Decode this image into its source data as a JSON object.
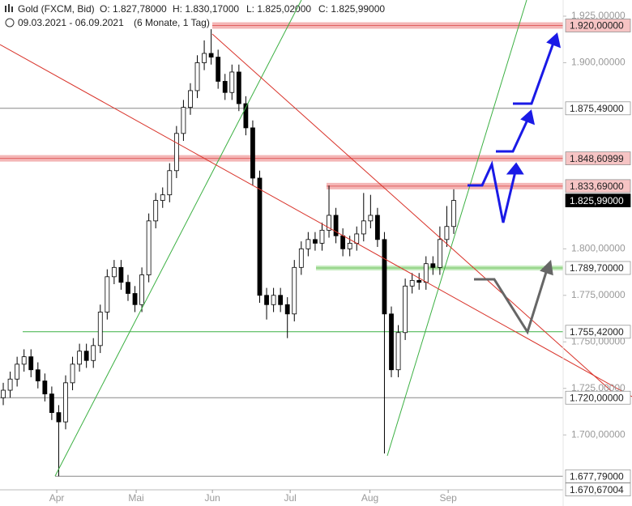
{
  "chart_data": {
    "type": "candlestick",
    "title": "Gold (FXCM, Bid)",
    "ohlc_header": [
      "O: 1.827,78000",
      "H: 1.830,17000",
      "L: 1.825,02000",
      "C: 1.825,99000"
    ],
    "subtitle": "09.03.2021 - 06.09.2021",
    "period": "(6 Monate, 1 Tag)",
    "color_up": "#ffffff",
    "color_down": "#000000",
    "xlim": [
      -0.47,
      80.2
    ],
    "xticks": [
      {
        "value": 7.72,
        "label": "Apr"
      },
      {
        "value": 19.18,
        "label": "Mai"
      },
      {
        "value": 30.18,
        "label": "Jun"
      },
      {
        "value": 41.4,
        "label": "Jul"
      },
      {
        "value": 52.9,
        "label": "Aug"
      },
      {
        "value": 64.2,
        "label": "Sep"
      }
    ],
    "ylim": [
      1.6705,
      1.9337
    ],
    "yticks": [
      {
        "value": 1.925,
        "label": "1.925,00000"
      },
      {
        "value": 1.9,
        "label": "1.900,00000"
      },
      {
        "value": 1.8,
        "label": "1.800,00000"
      },
      {
        "value": 1.775,
        "label": "1.775,00000"
      },
      {
        "value": 1.75,
        "label": "1.750,00000"
      },
      {
        "value": 1.725,
        "label": "1.725,00000"
      },
      {
        "value": 1.7,
        "label": "1.700,00000"
      }
    ],
    "open": [
      1.72,
      1.724,
      1.73,
      1.738,
      1.742,
      1.735,
      1.729,
      1.722,
      1.712,
      1.707,
      1.728,
      1.738,
      1.745,
      1.74,
      1.748,
      1.766,
      1.785,
      1.79,
      1.782,
      1.776,
      1.77,
      1.786,
      1.815,
      1.826,
      1.829,
      1.842,
      1.862,
      1.876,
      1.885,
      1.9,
      1.905,
      1.903,
      1.89,
      1.884,
      1.895,
      1.878,
      1.865,
      1.838,
      1.775,
      1.77,
      1.775,
      1.77,
      1.765,
      1.79,
      1.8,
      1.805,
      1.803,
      1.81,
      1.818,
      1.807,
      1.8,
      1.803,
      1.808,
      1.815,
      1.818,
      1.805,
      1.765,
      1.735,
      1.755,
      1.78,
      1.783,
      1.782,
      1.792,
      1.79,
      1.805,
      1.812
    ],
    "high": [
      1.728,
      1.734,
      1.742,
      1.746,
      1.746,
      1.739,
      1.733,
      1.726,
      1.716,
      1.732,
      1.742,
      1.749,
      1.749,
      1.752,
      1.77,
      1.789,
      1.794,
      1.794,
      1.786,
      1.78,
      1.79,
      1.819,
      1.83,
      1.833,
      1.846,
      1.866,
      1.88,
      1.889,
      1.904,
      1.912,
      1.918,
      1.907,
      1.894,
      1.899,
      1.899,
      1.882,
      1.869,
      1.842,
      1.779,
      1.779,
      1.779,
      1.774,
      1.794,
      1.804,
      1.809,
      1.809,
      1.814,
      1.834,
      1.822,
      1.811,
      1.807,
      1.812,
      1.83,
      1.829,
      1.822,
      1.809,
      1.769,
      1.759,
      1.784,
      1.787,
      1.787,
      1.796,
      1.796,
      1.812,
      1.823,
      1.832
    ],
    "low": [
      1.716,
      1.72,
      1.726,
      1.734,
      1.731,
      1.725,
      1.718,
      1.708,
      1.6778,
      1.703,
      1.724,
      1.734,
      1.736,
      1.736,
      1.744,
      1.762,
      1.781,
      1.778,
      1.772,
      1.766,
      1.766,
      1.782,
      1.811,
      1.822,
      1.825,
      1.838,
      1.858,
      1.872,
      1.881,
      1.896,
      1.899,
      1.886,
      1.88,
      1.88,
      1.874,
      1.861,
      1.834,
      1.771,
      1.762,
      1.766,
      1.766,
      1.752,
      1.761,
      1.786,
      1.796,
      1.799,
      1.799,
      1.806,
      1.803,
      1.796,
      1.796,
      1.799,
      1.804,
      1.811,
      1.801,
      1.69,
      1.731,
      1.731,
      1.751,
      1.776,
      1.778,
      1.778,
      1.786,
      1.786,
      1.801,
      1.808
    ],
    "close": [
      1.724,
      1.73,
      1.738,
      1.742,
      1.735,
      1.729,
      1.722,
      1.712,
      1.707,
      1.728,
      1.738,
      1.745,
      1.74,
      1.748,
      1.766,
      1.785,
      1.79,
      1.782,
      1.776,
      1.77,
      1.786,
      1.815,
      1.826,
      1.829,
      1.842,
      1.862,
      1.876,
      1.885,
      1.9,
      1.905,
      1.903,
      1.89,
      1.884,
      1.895,
      1.878,
      1.865,
      1.838,
      1.775,
      1.77,
      1.775,
      1.77,
      1.765,
      1.79,
      1.8,
      1.805,
      1.803,
      1.81,
      1.818,
      1.807,
      1.8,
      1.803,
      1.808,
      1.815,
      1.818,
      1.805,
      1.765,
      1.735,
      1.755,
      1.78,
      1.783,
      1.782,
      1.792,
      1.79,
      1.805,
      1.812,
      1.826
    ],
    "levels": [
      {
        "value": 1.92,
        "label": "1.920,00000",
        "style": "red"
      },
      {
        "value": 1.87549,
        "label": "1.875,49000",
        "style": "gray"
      },
      {
        "value": 1.84860999,
        "label": "1.848,60999",
        "style": "red"
      },
      {
        "value": 1.83369,
        "label": "1.833,69000",
        "style": "red"
      },
      {
        "value": 1.82599,
        "label": "1.825,99000",
        "style": "current"
      },
      {
        "value": 1.7897,
        "label": "1.789,70000",
        "style": "green"
      },
      {
        "value": 1.75542,
        "label": "1.755,42000",
        "style": "greenline"
      },
      {
        "value": 1.72,
        "label": "1.720,00000",
        "style": "gray"
      },
      {
        "value": 1.67779,
        "label": "1.677,79000",
        "style": "gray"
      },
      {
        "value": 1.67067004,
        "label": "1.670,67004",
        "style": "label"
      }
    ]
  }
}
